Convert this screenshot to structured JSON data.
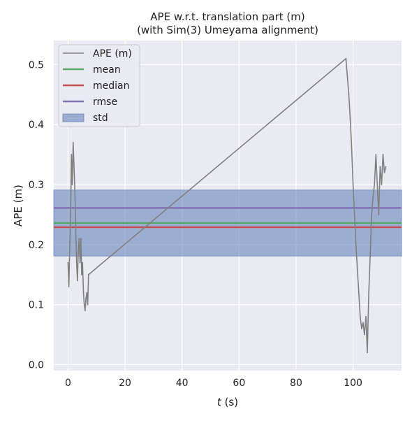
{
  "chart_data": {
    "type": "line",
    "title": "APE w.r.t. translation part (m)",
    "subtitle": "(with Sim(3) Umeyama alignment)",
    "xlabel_italic": "t",
    "xlabel_unit": "(s)",
    "ylabel": "APE (m)",
    "xlim": [
      -5,
      117
    ],
    "ylim": [
      -0.01,
      0.54
    ],
    "xticks": [
      0,
      20,
      40,
      60,
      80,
      100
    ],
    "yticks": [
      0.0,
      0.1,
      0.2,
      0.3,
      0.4,
      0.5
    ],
    "grid": true,
    "legend_position": "top-left",
    "series": [
      {
        "name": "APE (m)",
        "color": "#808080",
        "x": [
          0.0,
          0.3,
          0.6,
          0.9,
          1.2,
          1.5,
          1.8,
          2.1,
          2.4,
          2.7,
          3.0,
          3.3,
          3.6,
          3.9,
          4.2,
          4.5,
          4.8,
          5.1,
          5.4,
          5.7,
          6.0,
          6.3,
          6.6,
          6.9,
          7.2,
          97.5,
          98.0,
          98.5,
          99.0,
          99.5,
          100.0,
          100.5,
          101.0,
          101.5,
          102.0,
          102.5,
          103.0,
          103.5,
          104.0,
          104.5,
          105.0,
          105.5,
          106.0,
          106.5,
          107.0,
          107.5,
          108.0,
          108.5,
          109.0,
          109.5,
          110.0,
          110.5,
          111.0,
          111.5
        ],
        "y": [
          0.17,
          0.13,
          0.2,
          0.25,
          0.35,
          0.3,
          0.37,
          0.33,
          0.29,
          0.23,
          0.17,
          0.14,
          0.19,
          0.21,
          0.17,
          0.21,
          0.15,
          0.17,
          0.12,
          0.1,
          0.09,
          0.11,
          0.12,
          0.1,
          0.15,
          0.51,
          0.48,
          0.45,
          0.41,
          0.36,
          0.3,
          0.25,
          0.2,
          0.16,
          0.12,
          0.08,
          0.06,
          0.07,
          0.05,
          0.08,
          0.02,
          0.12,
          0.18,
          0.25,
          0.28,
          0.3,
          0.35,
          0.3,
          0.25,
          0.33,
          0.3,
          0.35,
          0.32,
          0.33
        ]
      },
      {
        "name": "mean",
        "color": "#55a868",
        "value": 0.236
      },
      {
        "name": "median",
        "color": "#c44e52",
        "value": 0.229
      },
      {
        "name": "rmse",
        "color": "#8172b3",
        "value": 0.261
      },
      {
        "name": "std",
        "color": "#4c72b0",
        "range": [
          0.181,
          0.291
        ]
      }
    ]
  }
}
